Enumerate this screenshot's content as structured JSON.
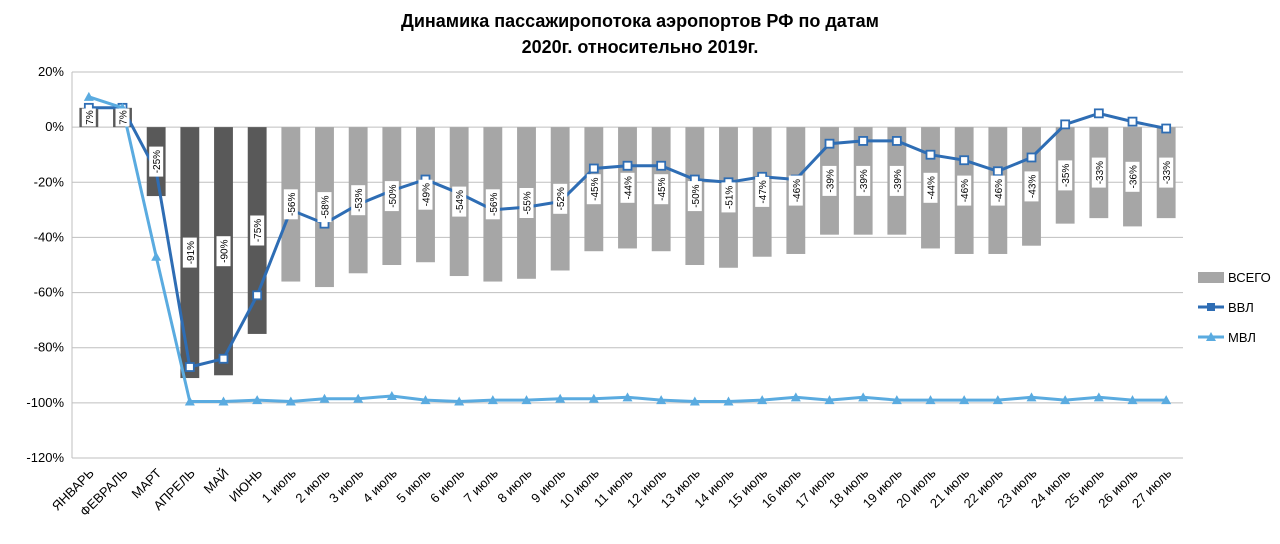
{
  "chart_data": {
    "type": "bar",
    "title_line1": "Динамика пассажиропотока аэропортов РФ по датам",
    "title_line2": "2020г. относительно 2019г.",
    "ylim": [
      -120,
      20
    ],
    "yticks": [
      20,
      0,
      -20,
      -40,
      -60,
      -80,
      -100,
      -120
    ],
    "ytick_labels": [
      "20%",
      "0%",
      "-20%",
      "-40%",
      "-60%",
      "-80%",
      "-100%",
      "-120%"
    ],
    "grid": "horizontal",
    "legend_position": "right",
    "categories": [
      "ЯНВАРЬ",
      "ФЕВРАЛЬ",
      "МАРТ",
      "АПРЕЛЬ",
      "МАЙ",
      "ИЮНЬ",
      "1 июль",
      "2 июль",
      "3 июль",
      "4 июль",
      "5 июль",
      "6 июль",
      "7 июль",
      "8 июль",
      "9 июль",
      "10 июль",
      "11 июль",
      "12 июль",
      "13 июль",
      "14 июль",
      "15 июль",
      "16 июль",
      "17 июль",
      "18 июль",
      "19 июль",
      "20 июль",
      "21 июль",
      "22 июль",
      "23 июль",
      "24 июль",
      "25 июль",
      "26 июль",
      "27 июль"
    ],
    "series": [
      {
        "name": "ВСЕГО",
        "kind": "bar",
        "color_dark": "#595959",
        "color_light": "#a6a6a6",
        "dark_count": 6,
        "values": [
          7,
          7,
          -25,
          -91,
          -90,
          -75,
          -56,
          -58,
          -53,
          -50,
          -49,
          -54,
          -56,
          -55,
          -52,
          -45,
          -44,
          -45,
          -50,
          -51,
          -47,
          -46,
          -39,
          -39,
          -39,
          -44,
          -46,
          -46,
          -43,
          -35,
          -33,
          -36,
          -33
        ],
        "labels": [
          "7%",
          "7%",
          "-25%",
          "-91%",
          "-90%",
          "-75%",
          "-56%",
          "-58%",
          "-53%",
          "-50%",
          "-49%",
          "-54%",
          "-56%",
          "-55%",
          "-52%",
          "-45%",
          "-44%",
          "-45%",
          "-50%",
          "-51%",
          "-47%",
          "-46%",
          "-39%",
          "-39%",
          "-39%",
          "-44%",
          "-46%",
          "-46%",
          "-43%",
          "-35%",
          "-33%",
          "-36%",
          "-33%"
        ]
      },
      {
        "name": "ВВЛ",
        "kind": "line",
        "marker": "square",
        "color": "#2e6db4",
        "values": [
          7,
          7,
          -16,
          -87,
          -84,
          -61,
          -30,
          -35,
          -28,
          -23,
          -19,
          -24,
          -30,
          -29,
          -27,
          -15,
          -14,
          -14,
          -19,
          -20,
          -18,
          -19,
          -6,
          -5,
          -5,
          -10,
          -12,
          -16,
          -11,
          1,
          5,
          2,
          -0.5
        ]
      },
      {
        "name": "МВЛ",
        "kind": "line",
        "marker": "triangle",
        "color": "#5aabe0",
        "values": [
          11,
          7,
          -47,
          -99.5,
          -99.5,
          -99,
          -99.5,
          -98.5,
          -98.5,
          -97.5,
          -99,
          -99.5,
          -99,
          -99,
          -98.5,
          -98.5,
          -98,
          -99,
          -99.5,
          -99.5,
          -99,
          -98,
          -99,
          -98,
          -99,
          -99,
          -99,
          -99,
          -98,
          -99,
          -98,
          -99,
          -99
        ]
      }
    ]
  }
}
